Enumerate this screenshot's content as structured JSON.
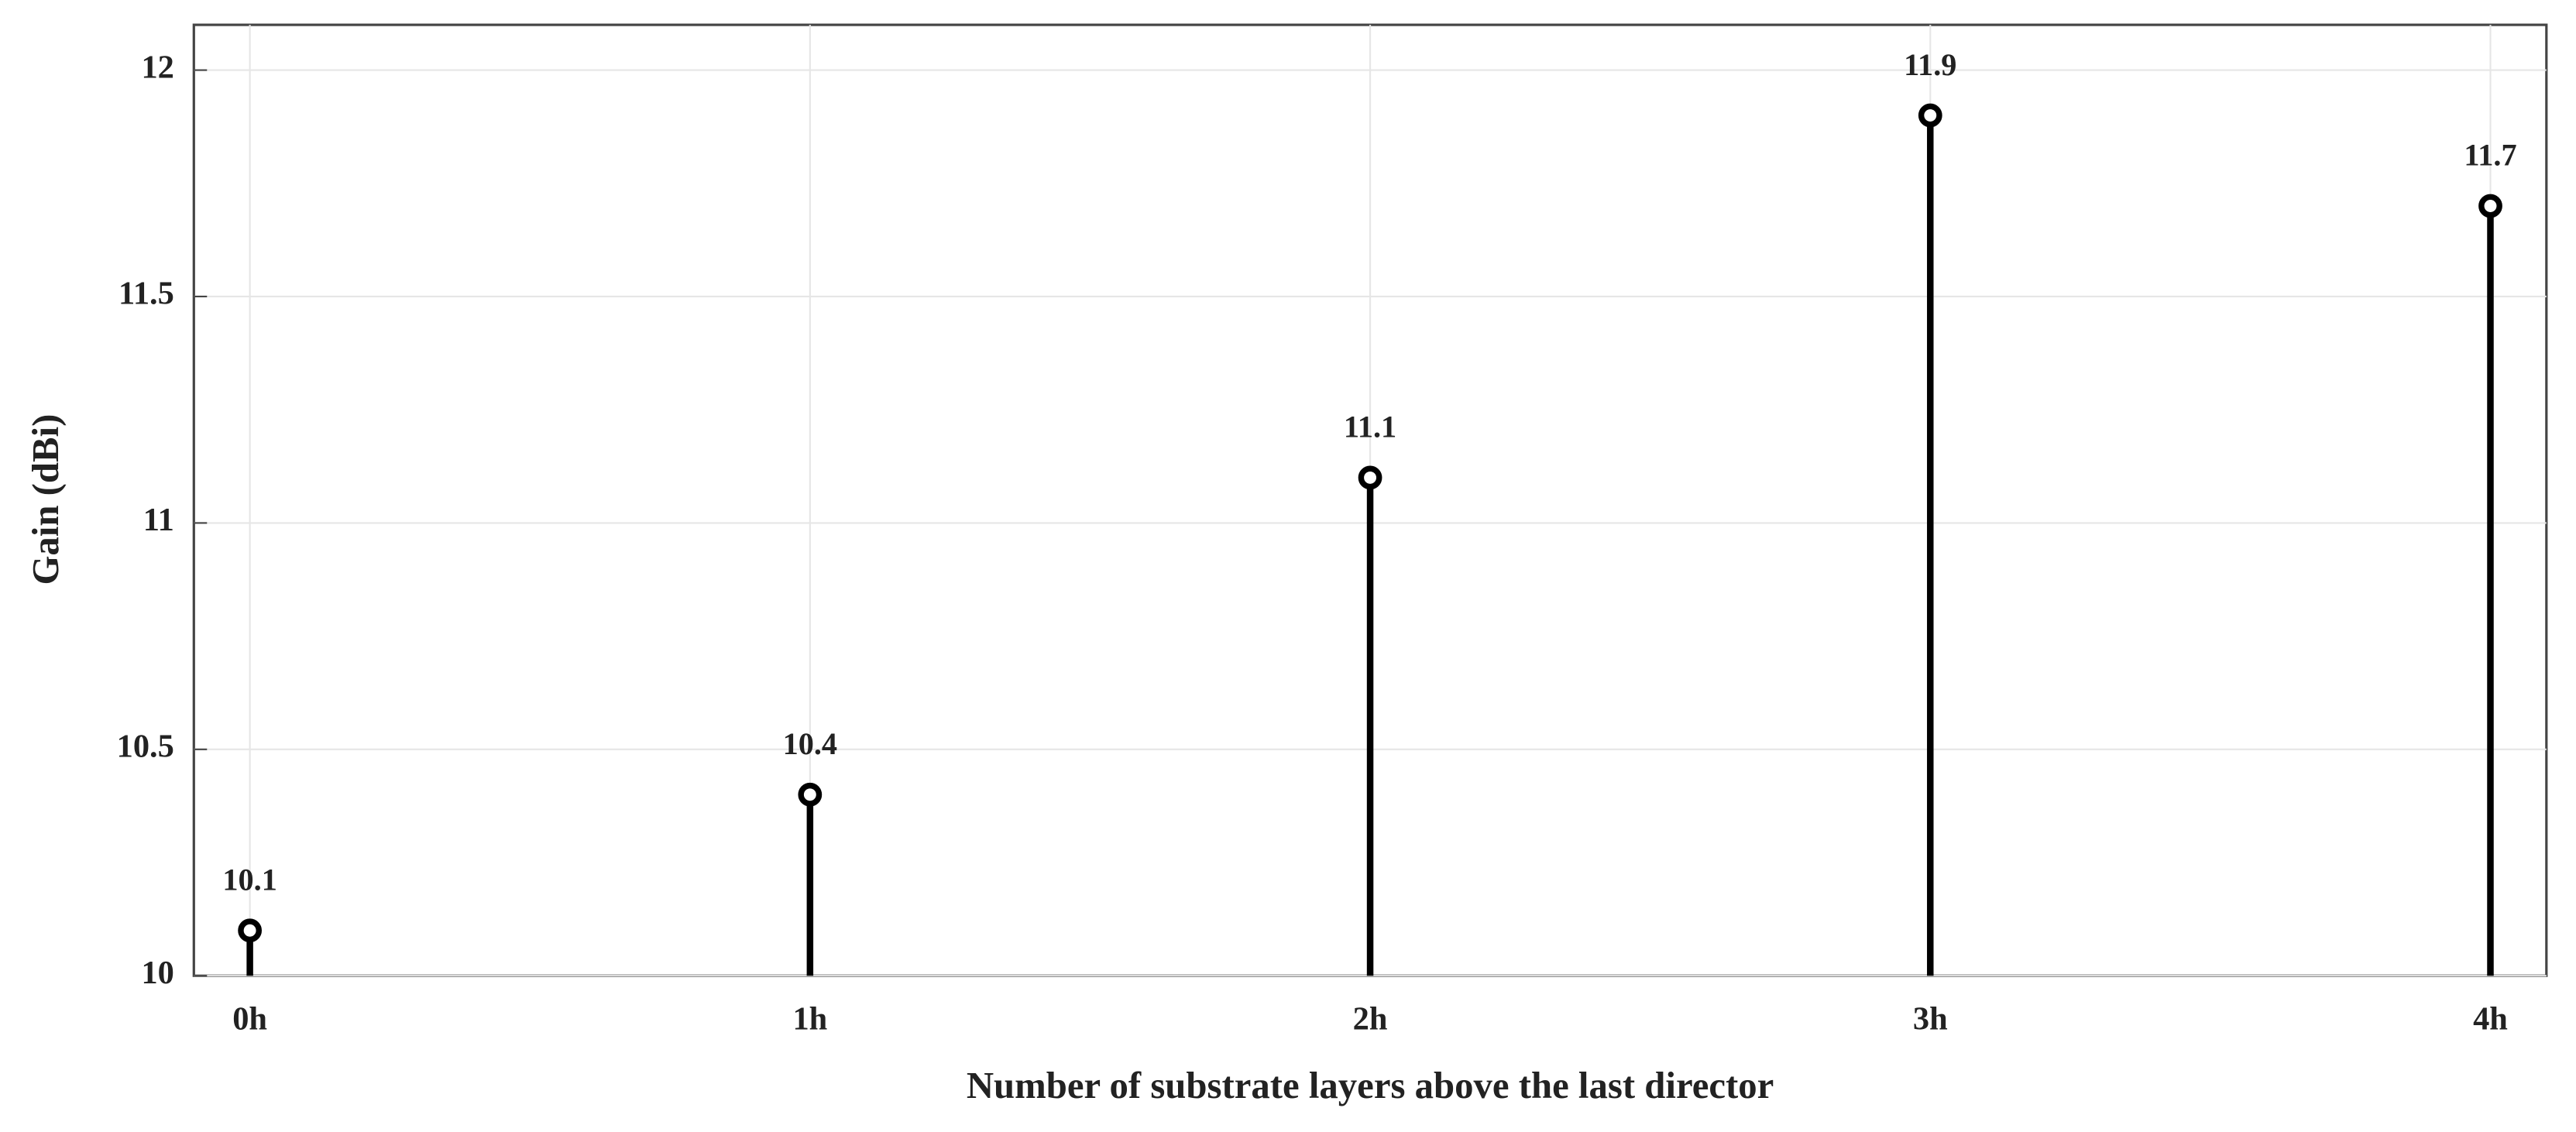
{
  "chart_data": {
    "type": "stem",
    "x_label": "Number of substrate layers above the last director",
    "y_label": "Gain (dBi)",
    "categories": [
      "0h",
      "1h",
      "2h",
      "3h",
      "4h"
    ],
    "values": [
      10.1,
      10.4,
      11.1,
      11.9,
      11.7
    ],
    "color": "#000000",
    "ylim": [
      10,
      12.1
    ],
    "yticks": [
      10,
      10.5,
      11,
      11.5,
      12
    ],
    "grid": true
  }
}
